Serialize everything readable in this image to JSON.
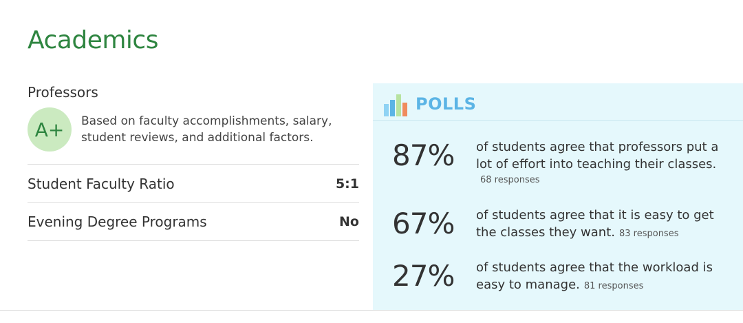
{
  "section": {
    "title": "Academics"
  },
  "professors": {
    "heading": "Professors",
    "grade": "A+",
    "description": "Based on faculty accomplishments, salary, student reviews, and additional factors."
  },
  "stats": [
    {
      "label": "Student Faculty Ratio",
      "value": "5:1"
    },
    {
      "label": "Evening Degree Programs",
      "value": "No"
    }
  ],
  "polls": {
    "title": "POLLS",
    "icon": "bar-chart-icon",
    "icon_colors": [
      "#8fd3f4",
      "#5bb4e5",
      "#b7e3a0",
      "#f08a5d"
    ],
    "items": [
      {
        "percent": "87%",
        "text": "of students agree that professors put a lot of effort into teaching their classes.",
        "responses": "68 responses"
      },
      {
        "percent": "67%",
        "text": "of students agree that it is easy to get the classes they want.",
        "responses": "83 responses"
      },
      {
        "percent": "27%",
        "text": "of students agree that the workload is easy to manage.",
        "responses": "81 responses"
      }
    ]
  },
  "colors": {
    "accent_green": "#2e8540",
    "grade_bg": "#cbeac0",
    "polls_bg": "#e5f8fc",
    "polls_title": "#5bb4e5"
  }
}
